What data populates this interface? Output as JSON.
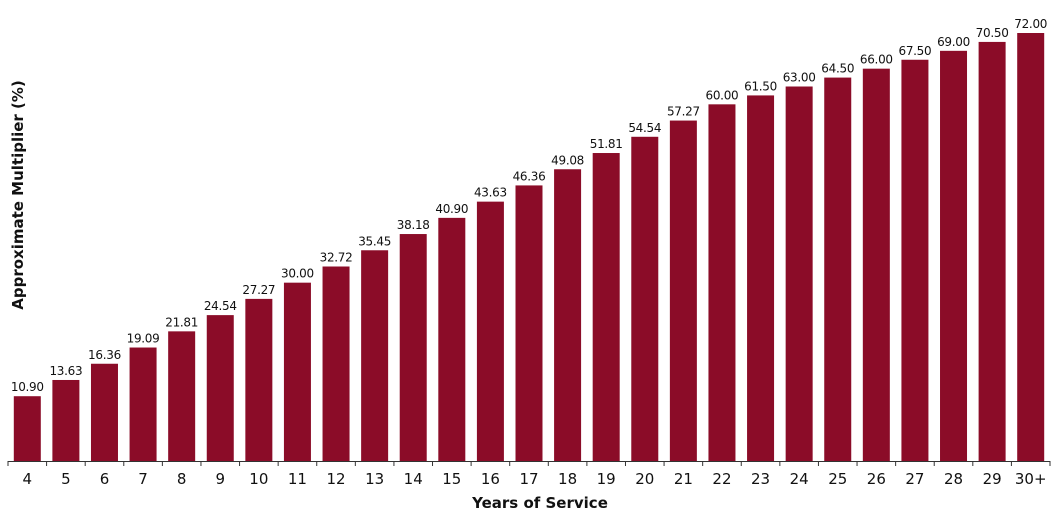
{
  "chart_data": {
    "type": "bar",
    "categories": [
      "4",
      "5",
      "6",
      "7",
      "8",
      "9",
      "10",
      "11",
      "12",
      "13",
      "14",
      "15",
      "16",
      "17",
      "18",
      "19",
      "20",
      "21",
      "22",
      "23",
      "24",
      "25",
      "26",
      "27",
      "28",
      "29",
      "30+"
    ],
    "values": [
      10.9,
      13.63,
      16.36,
      19.09,
      21.81,
      24.54,
      27.27,
      30.0,
      32.72,
      35.45,
      38.18,
      40.9,
      43.63,
      46.36,
      49.08,
      51.81,
      54.54,
      57.27,
      60.0,
      61.5,
      63.0,
      64.5,
      66.0,
      67.5,
      69.0,
      70.5,
      72.0
    ],
    "value_labels": [
      "10.90",
      "13.63",
      "16.36",
      "19.09",
      "21.81",
      "24.54",
      "27.27",
      "30.00",
      "32.72",
      "35.45",
      "38.18",
      "40.90",
      "43.63",
      "46.36",
      "49.08",
      "51.81",
      "54.54",
      "57.27",
      "60.00",
      "61.50",
      "63.00",
      "64.50",
      "66.00",
      "67.50",
      "69.00",
      "70.50",
      "72.00"
    ],
    "xlabel": "Years of Service",
    "ylabel": "Approximate Multiplier (%)",
    "ylim": [
      0,
      72
    ],
    "bar_color": "#8b0c28",
    "grid": false,
    "legend": "none"
  }
}
